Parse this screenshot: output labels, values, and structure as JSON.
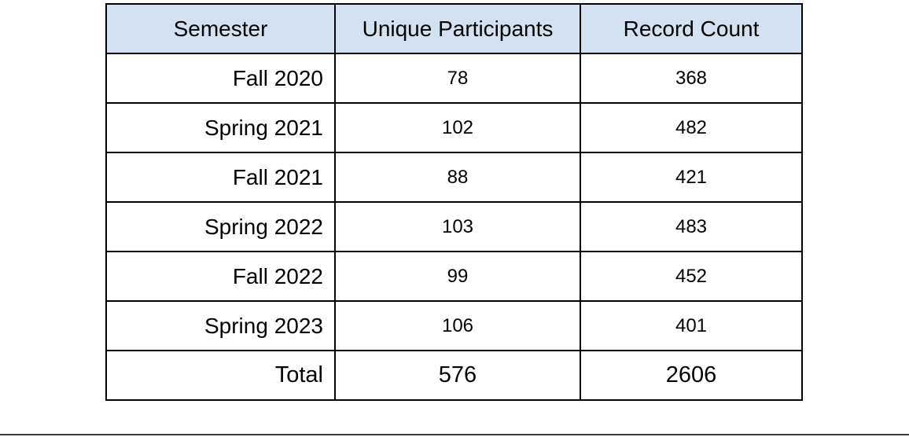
{
  "chart_data": {
    "type": "table",
    "columns": [
      "Semester",
      "Unique Participants",
      "Record Count"
    ],
    "rows": [
      {
        "semester": "Fall 2020",
        "participants": "78",
        "records": "368"
      },
      {
        "semester": "Spring 2021",
        "participants": "102",
        "records": "482"
      },
      {
        "semester": "Fall 2021",
        "participants": "88",
        "records": "421"
      },
      {
        "semester": "Spring 2022",
        "participants": "103",
        "records": "483"
      },
      {
        "semester": "Fall 2022",
        "participants": "99",
        "records": "452"
      },
      {
        "semester": "Spring 2023",
        "participants": "106",
        "records": "401"
      }
    ],
    "total": {
      "label": "Total",
      "participants": "576",
      "records": "2606"
    },
    "header_color": "#d3e1f1"
  }
}
